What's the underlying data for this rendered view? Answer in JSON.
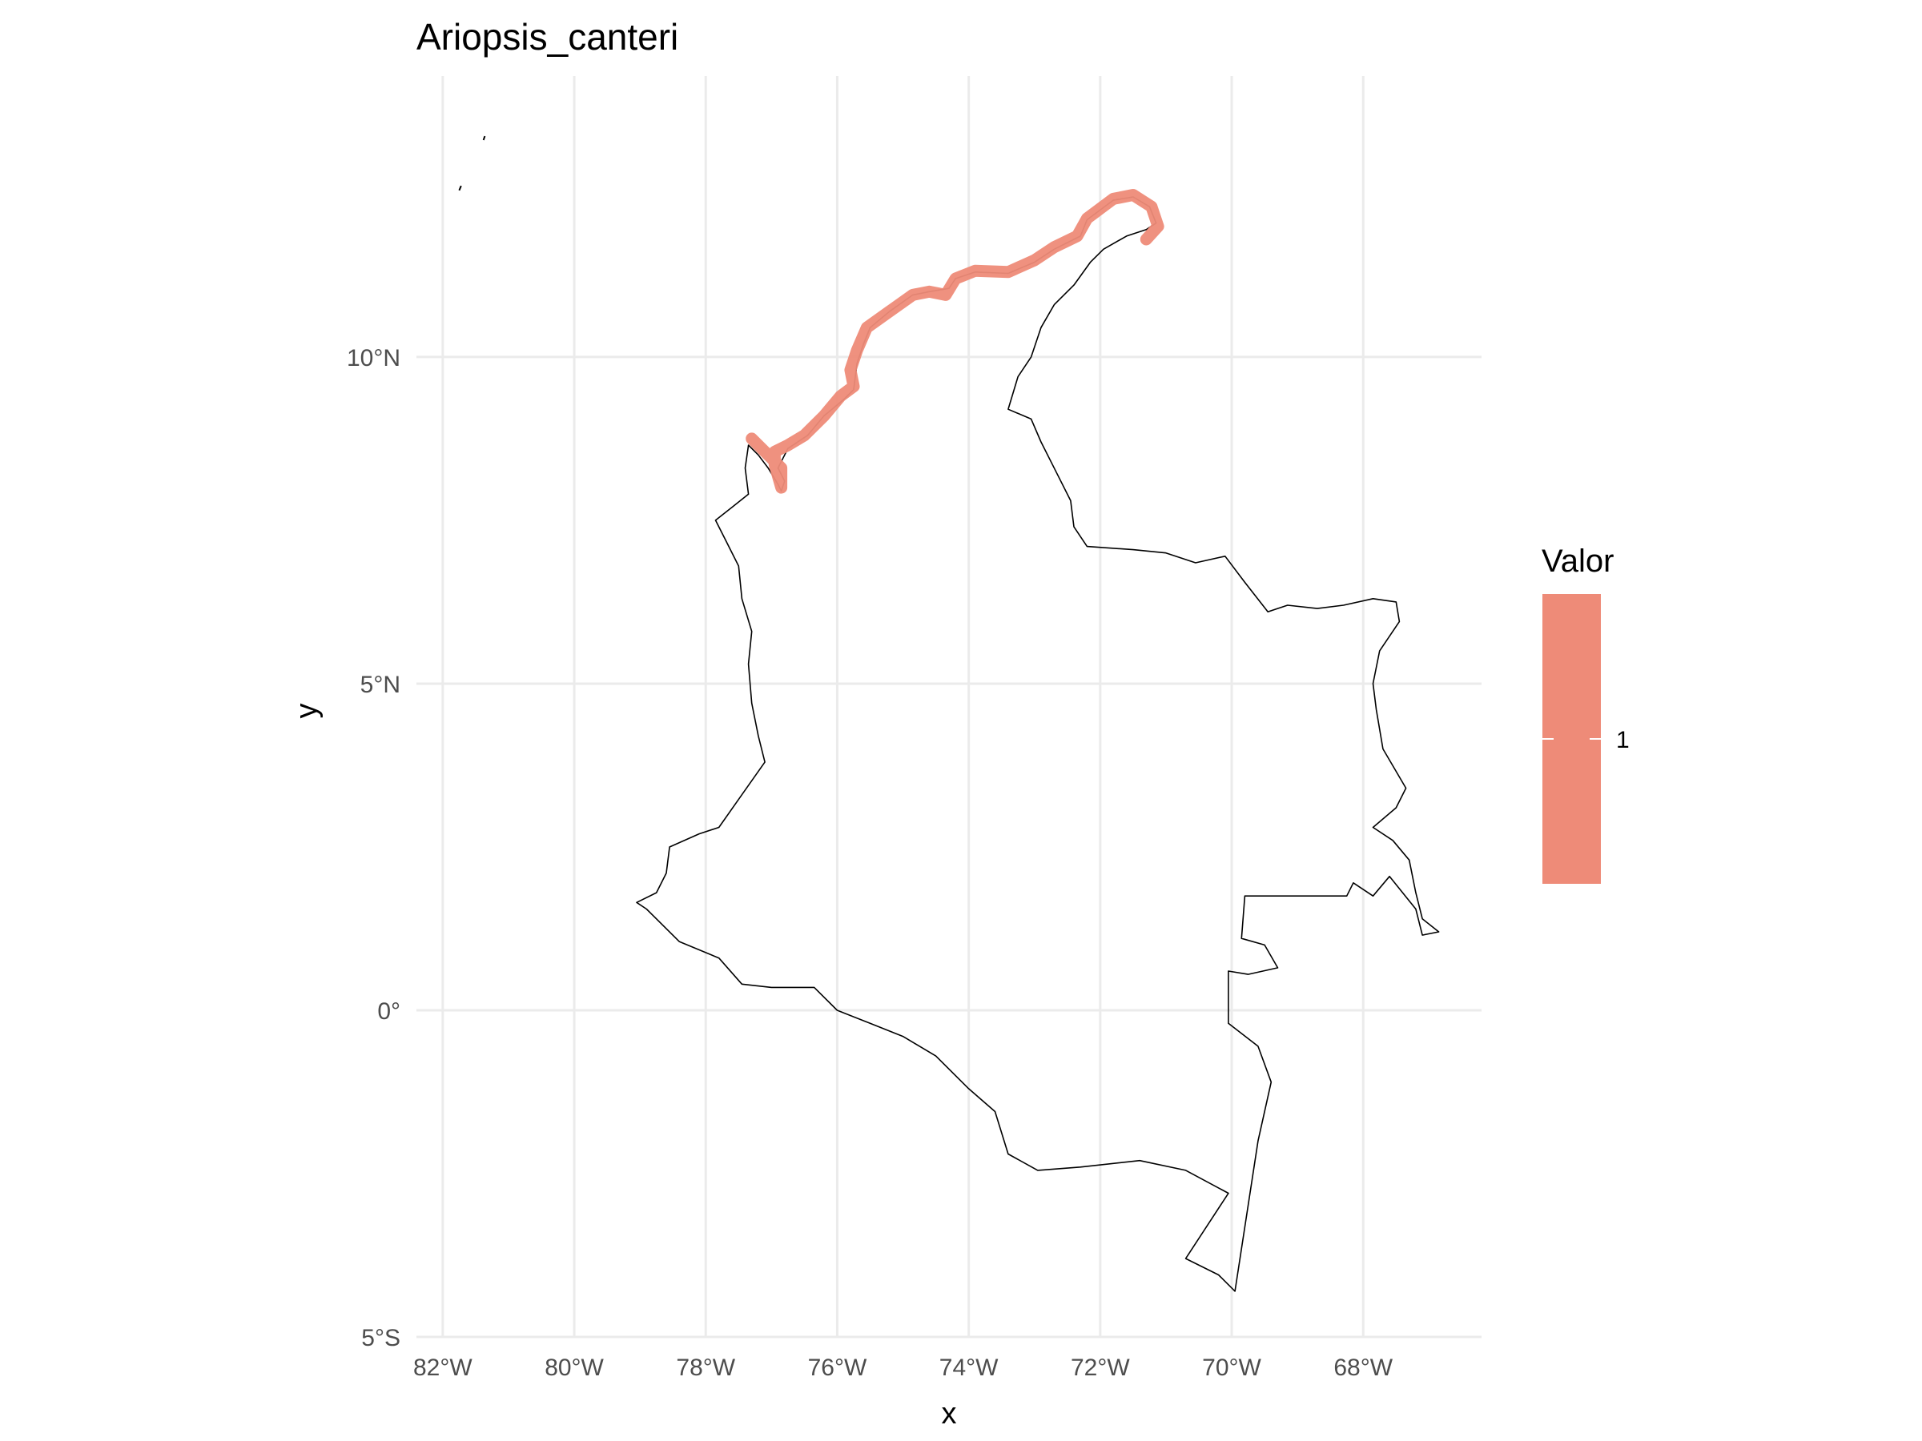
{
  "chart_data": {
    "type": "map",
    "title": "Ariopsis_canteri",
    "xlabel": "x",
    "ylabel": "y",
    "xlim": [
      -82.4,
      -66.2
    ],
    "ylim": [
      -5.0,
      14.3
    ],
    "x_ticks": [
      {
        "value": -82,
        "label": "82°W"
      },
      {
        "value": -80,
        "label": "80°W"
      },
      {
        "value": -78,
        "label": "78°W"
      },
      {
        "value": -76,
        "label": "76°W"
      },
      {
        "value": -74,
        "label": "74°W"
      },
      {
        "value": -72,
        "label": "72°W"
      },
      {
        "value": -70,
        "label": "70°W"
      },
      {
        "value": -68,
        "label": "68°W"
      }
    ],
    "y_ticks": [
      {
        "value": 10,
        "label": "10°N"
      },
      {
        "value": 5,
        "label": "5°N"
      },
      {
        "value": 0,
        "label": "0°"
      },
      {
        "value": -5,
        "label": "5°S"
      }
    ],
    "grid": true,
    "legend": {
      "title": "Valor",
      "placement": "right",
      "entries": [
        {
          "label": "1",
          "color": "#ee8b78"
        }
      ]
    },
    "colors": {
      "range": "#ee8b78",
      "border": "#000000",
      "grid": "#ebebeb"
    },
    "country_outline": [
      [
        -77.35,
        8.65
      ],
      [
        -77.2,
        8.5
      ],
      [
        -77.05,
        8.3
      ],
      [
        -76.9,
        8.05
      ],
      [
        -76.85,
        7.95
      ],
      [
        -76.8,
        8.1
      ],
      [
        -76.9,
        8.3
      ],
      [
        -76.75,
        8.6
      ],
      [
        -76.45,
        8.8
      ],
      [
        -76.2,
        9.1
      ],
      [
        -75.9,
        9.35
      ],
      [
        -75.75,
        9.5
      ],
      [
        -75.7,
        9.9
      ],
      [
        -75.6,
        10.2
      ],
      [
        -75.5,
        10.45
      ],
      [
        -75.2,
        10.7
      ],
      [
        -74.85,
        10.95
      ],
      [
        -74.6,
        11.0
      ],
      [
        -74.3,
        11.05
      ],
      [
        -74.2,
        11.2
      ],
      [
        -73.9,
        11.3
      ],
      [
        -73.4,
        11.28
      ],
      [
        -73.0,
        11.45
      ],
      [
        -72.7,
        11.65
      ],
      [
        -72.3,
        11.85
      ],
      [
        -72.2,
        12.1
      ],
      [
        -71.8,
        12.4
      ],
      [
        -71.5,
        12.45
      ],
      [
        -71.25,
        12.3
      ],
      [
        -71.15,
        12.05
      ],
      [
        -71.3,
        11.95
      ],
      [
        -71.6,
        11.85
      ],
      [
        -71.95,
        11.65
      ],
      [
        -72.15,
        11.45
      ],
      [
        -72.4,
        11.1
      ],
      [
        -72.7,
        10.8
      ],
      [
        -72.9,
        10.45
      ],
      [
        -73.05,
        10.0
      ],
      [
        -73.25,
        9.7
      ],
      [
        -73.4,
        9.2
      ],
      [
        -73.05,
        9.05
      ],
      [
        -72.9,
        8.7
      ],
      [
        -72.65,
        8.2
      ],
      [
        -72.45,
        7.8
      ],
      [
        -72.4,
        7.4
      ],
      [
        -72.2,
        7.1
      ],
      [
        -71.5,
        7.05
      ],
      [
        -71.0,
        7.0
      ],
      [
        -70.55,
        6.85
      ],
      [
        -70.1,
        6.95
      ],
      [
        -69.8,
        6.55
      ],
      [
        -69.45,
        6.1
      ],
      [
        -69.15,
        6.2
      ],
      [
        -68.7,
        6.15
      ],
      [
        -68.3,
        6.2
      ],
      [
        -67.85,
        6.3
      ],
      [
        -67.5,
        6.25
      ],
      [
        -67.45,
        5.95
      ],
      [
        -67.75,
        5.5
      ],
      [
        -67.85,
        5.0
      ],
      [
        -67.8,
        4.6
      ],
      [
        -67.7,
        4.0
      ],
      [
        -67.35,
        3.4
      ],
      [
        -67.5,
        3.1
      ],
      [
        -67.85,
        2.8
      ],
      [
        -67.55,
        2.6
      ],
      [
        -67.3,
        2.3
      ],
      [
        -67.2,
        1.8
      ],
      [
        -67.1,
        1.4
      ],
      [
        -66.85,
        1.2
      ],
      [
        -67.1,
        1.15
      ],
      [
        -67.2,
        1.55
      ],
      [
        -67.6,
        2.05
      ],
      [
        -67.85,
        1.75
      ],
      [
        -68.15,
        1.95
      ],
      [
        -68.25,
        1.75
      ],
      [
        -69.1,
        1.75
      ],
      [
        -69.8,
        1.75
      ],
      [
        -69.85,
        1.1
      ],
      [
        -69.5,
        1.0
      ],
      [
        -69.3,
        0.65
      ],
      [
        -69.75,
        0.55
      ],
      [
        -70.05,
        0.6
      ],
      [
        -70.05,
        -0.2
      ],
      [
        -69.6,
        -0.55
      ],
      [
        -69.4,
        -1.1
      ],
      [
        -69.6,
        -2.0
      ],
      [
        -69.95,
        -4.3
      ],
      [
        -70.2,
        -4.05
      ],
      [
        -70.7,
        -3.8
      ],
      [
        -70.05,
        -2.8
      ],
      [
        -70.7,
        -2.45
      ],
      [
        -71.4,
        -2.3
      ],
      [
        -72.3,
        -2.4
      ],
      [
        -72.95,
        -2.45
      ],
      [
        -73.4,
        -2.2
      ],
      [
        -73.6,
        -1.55
      ],
      [
        -74.0,
        -1.2
      ],
      [
        -74.5,
        -0.7
      ],
      [
        -75.0,
        -0.4
      ],
      [
        -75.5,
        -0.2
      ],
      [
        -76.0,
        0.0
      ],
      [
        -76.35,
        0.35
      ],
      [
        -77.0,
        0.35
      ],
      [
        -77.45,
        0.4
      ],
      [
        -77.8,
        0.8
      ],
      [
        -78.4,
        1.05
      ],
      [
        -78.9,
        1.55
      ],
      [
        -79.05,
        1.65
      ],
      [
        -78.75,
        1.8
      ],
      [
        -78.6,
        2.1
      ],
      [
        -78.55,
        2.5
      ],
      [
        -78.1,
        2.7
      ],
      [
        -77.8,
        2.8
      ],
      [
        -77.45,
        3.3
      ],
      [
        -77.1,
        3.8
      ],
      [
        -77.2,
        4.2
      ],
      [
        -77.3,
        4.7
      ],
      [
        -77.35,
        5.3
      ],
      [
        -77.3,
        5.8
      ],
      [
        -77.45,
        6.3
      ],
      [
        -77.5,
        6.8
      ],
      [
        -77.7,
        7.2
      ],
      [
        -77.85,
        7.5
      ],
      [
        -77.6,
        7.7
      ],
      [
        -77.35,
        7.9
      ],
      [
        -77.4,
        8.3
      ],
      [
        -77.35,
        8.65
      ]
    ],
    "range_line": [
      [
        -77.3,
        8.75
      ],
      [
        -77.05,
        8.5
      ],
      [
        -76.85,
        8.3
      ],
      [
        -76.85,
        8.0
      ],
      [
        -76.95,
        8.35
      ],
      [
        -76.95,
        8.55
      ],
      [
        -76.75,
        8.65
      ],
      [
        -76.5,
        8.8
      ],
      [
        -76.2,
        9.1
      ],
      [
        -75.95,
        9.4
      ],
      [
        -75.75,
        9.55
      ],
      [
        -75.8,
        9.8
      ],
      [
        -75.7,
        10.1
      ],
      [
        -75.55,
        10.45
      ],
      [
        -75.2,
        10.7
      ],
      [
        -74.85,
        10.95
      ],
      [
        -74.6,
        11.0
      ],
      [
        -74.35,
        10.95
      ],
      [
        -74.2,
        11.2
      ],
      [
        -73.9,
        11.32
      ],
      [
        -73.4,
        11.3
      ],
      [
        -73.0,
        11.48
      ],
      [
        -72.7,
        11.68
      ],
      [
        -72.35,
        11.85
      ],
      [
        -72.2,
        12.12
      ],
      [
        -71.8,
        12.42
      ],
      [
        -71.5,
        12.48
      ],
      [
        -71.22,
        12.3
      ],
      [
        -71.12,
        12.0
      ],
      [
        -71.3,
        11.8
      ]
    ],
    "islands": [
      [
        [
          -81.75,
          12.55
        ],
        [
          -81.72,
          12.62
        ]
      ],
      [
        [
          -81.38,
          13.32
        ],
        [
          -81.36,
          13.38
        ]
      ]
    ]
  }
}
